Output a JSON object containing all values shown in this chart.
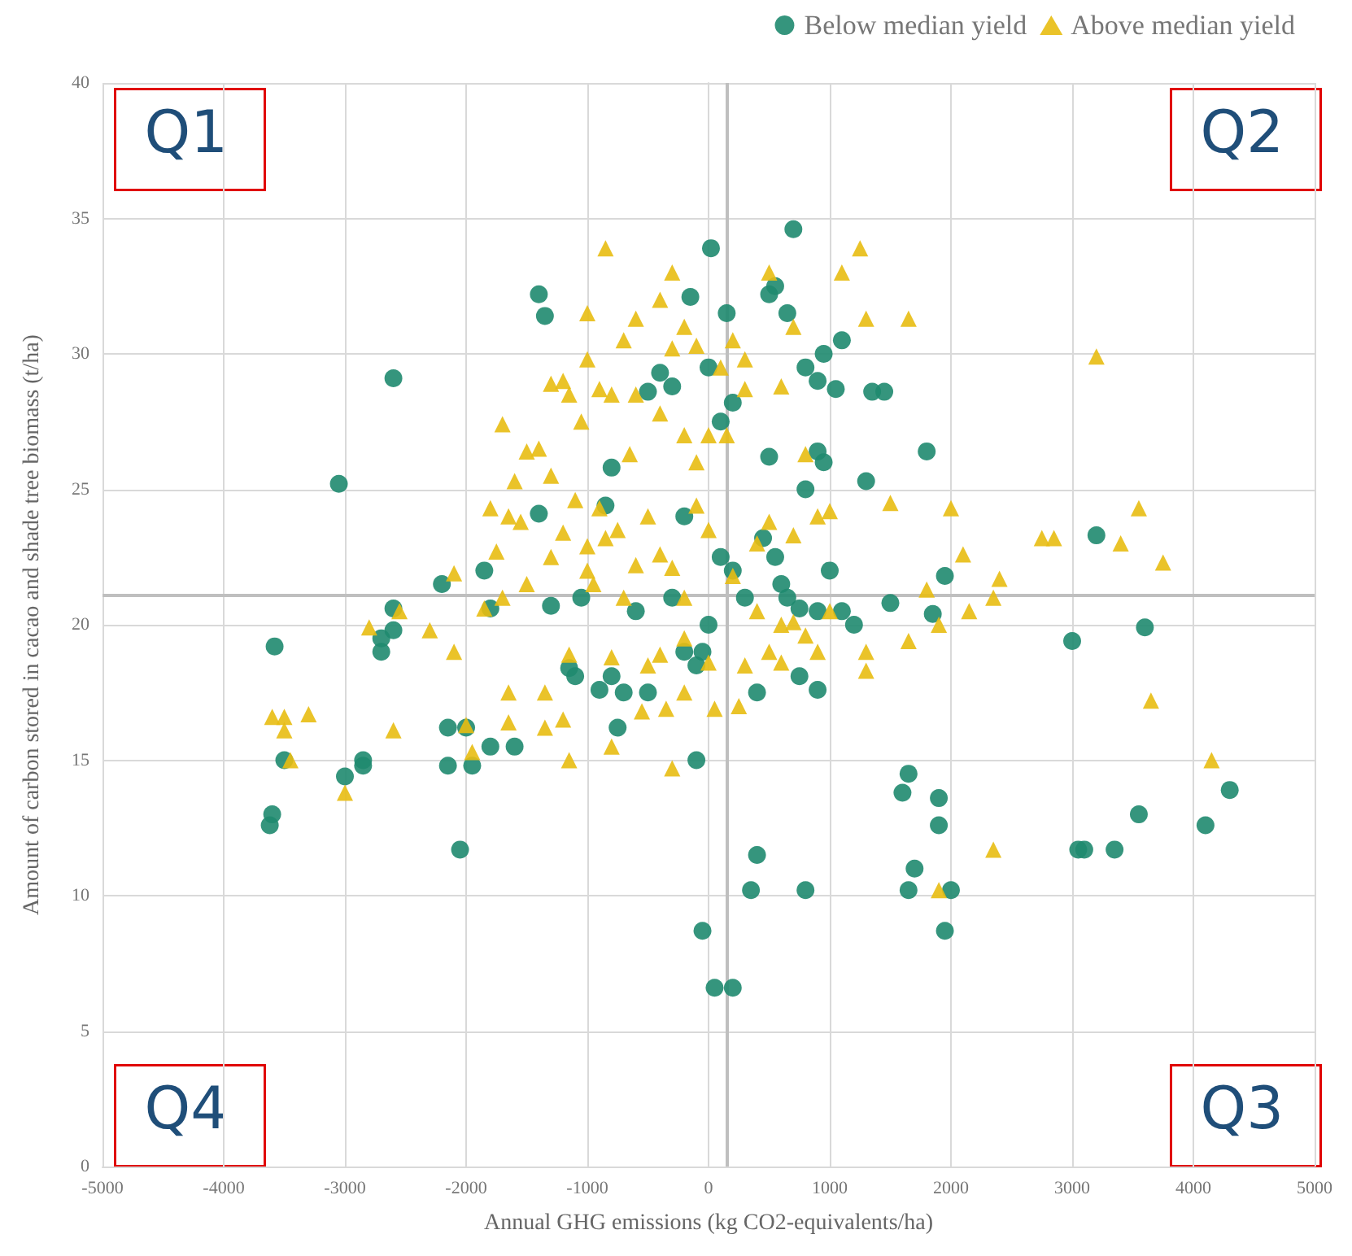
{
  "chart_data": {
    "type": "scatter",
    "xlabel": "Annual GHG emissions (kg CO2-equivalents/ha)",
    "ylabel": "Amount of carbon stored in cacao and shade tree biomass (t/ha)",
    "annotations": [
      "Q1",
      "Q2",
      "Q3",
      "Q4"
    ],
    "xlim": [
      -5000,
      5000
    ],
    "xticks": [
      -5000,
      -4000,
      -3000,
      -2000,
      -1000,
      0,
      1000,
      2000,
      3000,
      4000,
      5000
    ],
    "ylim": [
      0,
      40
    ],
    "yticks": [
      0,
      5,
      10,
      15,
      20,
      25,
      30,
      35,
      40
    ],
    "grid": true,
    "legend": "top right",
    "ref_lines": [
      {
        "axis": "x",
        "value": 150,
        "color": "#bfbfbf"
      },
      {
        "axis": "y",
        "value": 21.1,
        "color": "#bfbfbf"
      }
    ],
    "series": [
      {
        "name": "Below median yield",
        "color": "#1f8a6f",
        "marker": "circle",
        "x": [
          700,
          20,
          -1400,
          -1350,
          -2600,
          -3050,
          -3580,
          -3620,
          -3600,
          -3500,
          -3000,
          -2850,
          -2850,
          -2700,
          -2700,
          -2600,
          -2600,
          -2200,
          -2150,
          -2150,
          -2000,
          -2050,
          -1950,
          -1850,
          -1800,
          -1600,
          -1800,
          -1400,
          -1300,
          -1150,
          -1100,
          -1050,
          -900,
          -800,
          -850,
          -800,
          -750,
          -700,
          -600,
          -500,
          -500,
          -400,
          -300,
          -200,
          -100,
          -100,
          -50,
          50,
          200,
          350,
          400,
          800,
          400,
          750,
          900,
          -150,
          150,
          500,
          550,
          650,
          800,
          900,
          950,
          1100,
          1050,
          1350,
          1450,
          800,
          950,
          900,
          1300,
          1800,
          500,
          200,
          0,
          -300,
          100,
          -200,
          100,
          200,
          300,
          450,
          550,
          600,
          650,
          750,
          900,
          1000,
          1100,
          1200,
          1500,
          1850,
          1950,
          0,
          -50,
          1600,
          1650,
          1700,
          1650,
          1900,
          1900,
          2000,
          1950,
          3000,
          3200,
          3600,
          3050,
          3100,
          3350,
          3550,
          4100,
          4300
        ],
        "values": [
          34.6,
          33.9,
          32.2,
          31.4,
          29.1,
          25.2,
          19.2,
          12.6,
          13.0,
          15.0,
          14.4,
          14.8,
          15.0,
          19.0,
          19.5,
          20.6,
          19.8,
          21.5,
          16.2,
          14.8,
          16.2,
          11.7,
          14.8,
          22.0,
          20.6,
          15.5,
          15.5,
          24.1,
          20.7,
          18.4,
          18.1,
          21.0,
          17.6,
          18.1,
          24.4,
          25.8,
          16.2,
          17.5,
          20.5,
          17.5,
          28.6,
          29.3,
          21.0,
          19.0,
          18.5,
          15.0,
          8.7,
          6.6,
          6.6,
          10.2,
          11.5,
          10.2,
          17.5,
          18.1,
          17.6,
          32.1,
          31.5,
          32.2,
          32.5,
          31.5,
          29.5,
          29.0,
          30.0,
          30.5,
          28.7,
          28.6,
          28.6,
          25.0,
          26.0,
          26.4,
          25.3,
          26.4,
          26.2,
          28.2,
          29.5,
          28.8,
          27.5,
          24.0,
          22.5,
          22.0,
          21.0,
          23.2,
          22.5,
          21.5,
          21.0,
          20.6,
          20.5,
          22.0,
          20.5,
          20.0,
          20.8,
          20.4,
          21.8,
          20.0,
          19.0,
          13.8,
          14.5,
          11.0,
          10.2,
          13.6,
          12.6,
          10.2,
          8.7,
          19.4,
          23.3,
          19.9,
          11.7,
          11.7,
          11.7,
          13.0,
          12.6,
          13.9
        ]
      },
      {
        "name": "Above median yield",
        "color": "#e8bd12",
        "marker": "triangle",
        "x": [
          -850,
          -300,
          -400,
          500,
          1100,
          1250,
          3200,
          -1000,
          -600,
          -700,
          -300,
          1300,
          1650,
          -1000,
          -900,
          -800,
          -600,
          -1150,
          -1200,
          -1300,
          -1700,
          -1050,
          -650,
          -400,
          -200,
          -100,
          0,
          150,
          300,
          600,
          800,
          900,
          1000,
          -1500,
          -1400,
          -1300,
          -1600,
          -1800,
          -1550,
          -1650,
          -1200,
          -1000,
          -900,
          -850,
          -750,
          -600,
          -500,
          -400,
          -300,
          -100,
          0,
          200,
          400,
          500,
          700,
          1000,
          1500,
          2000,
          2850,
          2750,
          3400,
          3550,
          3750,
          2100,
          2400,
          2350,
          2150,
          1900,
          1800,
          1650,
          1300,
          1300,
          -1000,
          -1300,
          -1500,
          -1850,
          -2100,
          -1700,
          -2550,
          -2300,
          -2800,
          -3600,
          -3500,
          -3500,
          -3300,
          -3450,
          -3000,
          -2600,
          -2100,
          -2000,
          -1950,
          -1650,
          -1650,
          -1350,
          -1350,
          -1200,
          -1150,
          -1150,
          -800,
          -550,
          -350,
          -300,
          -200,
          50,
          250,
          300,
          500,
          600,
          700,
          900,
          -500,
          -400,
          -200,
          0,
          -700,
          -200,
          400,
          3650,
          4150,
          2350,
          1900,
          -800,
          100,
          200,
          300,
          -200,
          -100,
          700,
          -1100,
          600,
          800,
          -950,
          -1750
        ],
        "values": [
          33.9,
          33.0,
          32.0,
          33.0,
          33.0,
          33.9,
          29.9,
          31.5,
          31.3,
          30.5,
          30.2,
          31.3,
          31.3,
          29.8,
          28.7,
          28.5,
          28.5,
          28.5,
          29.0,
          28.9,
          27.4,
          27.5,
          26.3,
          27.8,
          27.0,
          26.0,
          27.0,
          27.0,
          28.7,
          28.8,
          26.3,
          24.0,
          24.2,
          26.4,
          26.5,
          25.5,
          25.3,
          24.3,
          23.8,
          24.0,
          23.4,
          22.9,
          24.3,
          23.2,
          23.5,
          22.2,
          24.0,
          22.6,
          22.1,
          24.4,
          23.5,
          21.8,
          23.0,
          23.8,
          23.3,
          20.5,
          24.5,
          24.3,
          23.2,
          23.2,
          23.0,
          24.3,
          22.3,
          22.6,
          21.7,
          21.0,
          20.5,
          20.0,
          21.3,
          19.4,
          18.3,
          19.0,
          22.0,
          22.5,
          21.5,
          20.6,
          21.9,
          21.0,
          20.5,
          19.8,
          19.9,
          16.6,
          16.6,
          16.1,
          16.7,
          15.0,
          13.8,
          16.1,
          19.0,
          16.3,
          15.3,
          16.4,
          17.5,
          17.5,
          16.2,
          16.5,
          15.0,
          18.9,
          15.5,
          16.8,
          16.9,
          14.7,
          17.5,
          16.9,
          17.0,
          18.5,
          19.0,
          18.6,
          20.1,
          19.0,
          18.5,
          18.9,
          19.5,
          18.6,
          21.0,
          21.0,
          20.5,
          17.2,
          15.0,
          11.7,
          10.2,
          18.8,
          29.5,
          30.5,
          29.8,
          31.0,
          30.3,
          31.0,
          24.6,
          20.0,
          19.6,
          21.5,
          22.7
        ]
      }
    ]
  }
}
